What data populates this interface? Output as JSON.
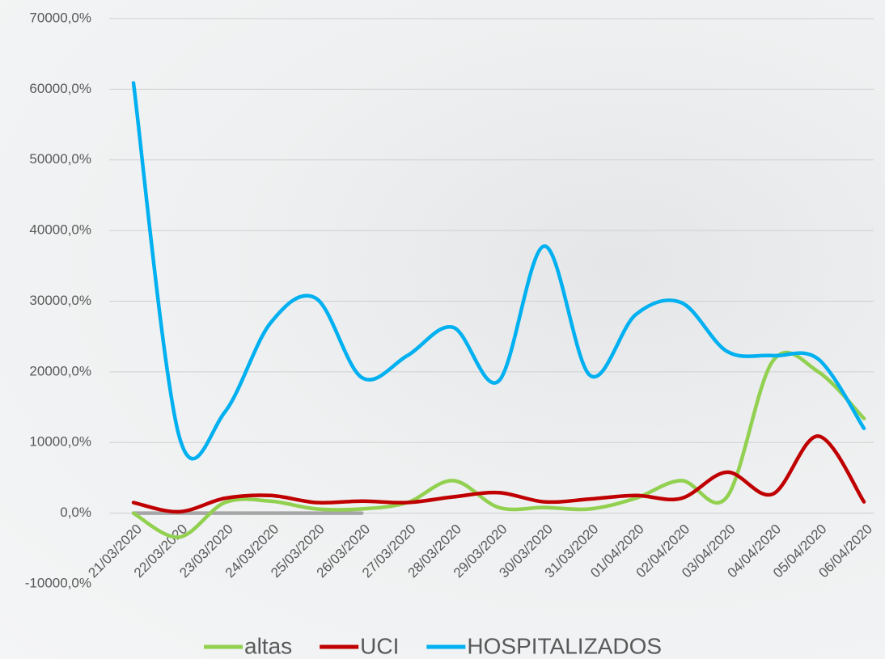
{
  "chart_data": {
    "type": "line",
    "categories": [
      "21/03/2020",
      "22/03/2020",
      "23/03/2020",
      "24/03/2020",
      "25/03/2020",
      "26/03/2020",
      "27/03/2020",
      "28/03/2020",
      "29/03/2020",
      "30/03/2020",
      "31/03/2020",
      "01/04/2020",
      "02/04/2020",
      "03/04/2020",
      "04/04/2020",
      "05/04/2020",
      "06/04/2020"
    ],
    "series": [
      {
        "color": "#a6a6a6",
        "values": [
          0,
          0,
          0,
          0,
          0,
          0,
          null,
          null,
          null,
          null,
          null,
          null,
          null,
          null,
          null,
          null,
          null
        ]
      },
      {
        "name": "altas",
        "color": "#92d050",
        "values": [
          0,
          -3400,
          1500,
          1700,
          600,
          600,
          1500,
          4600,
          800,
          800,
          600,
          2100,
          4600,
          2300,
          21500,
          20000,
          13400
        ]
      },
      {
        "name": "UCI",
        "color": "#c00000",
        "values": [
          1500,
          200,
          2100,
          2500,
          1500,
          1700,
          1500,
          2300,
          2900,
          1600,
          2000,
          2500,
          2100,
          5800,
          2700,
          10900,
          1600
        ]
      },
      {
        "name": "HOSPITALIZADOS",
        "color": "#00b0f0",
        "values": [
          60900,
          10900,
          14300,
          26900,
          30400,
          19200,
          22300,
          26300,
          18700,
          37800,
          19500,
          28100,
          29800,
          22900,
          22300,
          21800,
          12000
        ]
      }
    ],
    "ylim": [
      -10000,
      70000
    ],
    "yticks": [
      {
        "value": -10000,
        "label": "-10000,0%"
      },
      {
        "value": 0,
        "label": "0,0%"
      },
      {
        "value": 10000,
        "label": "10000,0%"
      },
      {
        "value": 20000,
        "label": "20000,0%"
      },
      {
        "value": 30000,
        "label": "30000,0%"
      },
      {
        "value": 40000,
        "label": "40000,0%"
      },
      {
        "value": 50000,
        "label": "50000,0%"
      },
      {
        "value": 60000,
        "label": "60000,0%"
      },
      {
        "value": 70000,
        "label": "70000,0%"
      }
    ],
    "grid": true,
    "legend": "bottom"
  }
}
